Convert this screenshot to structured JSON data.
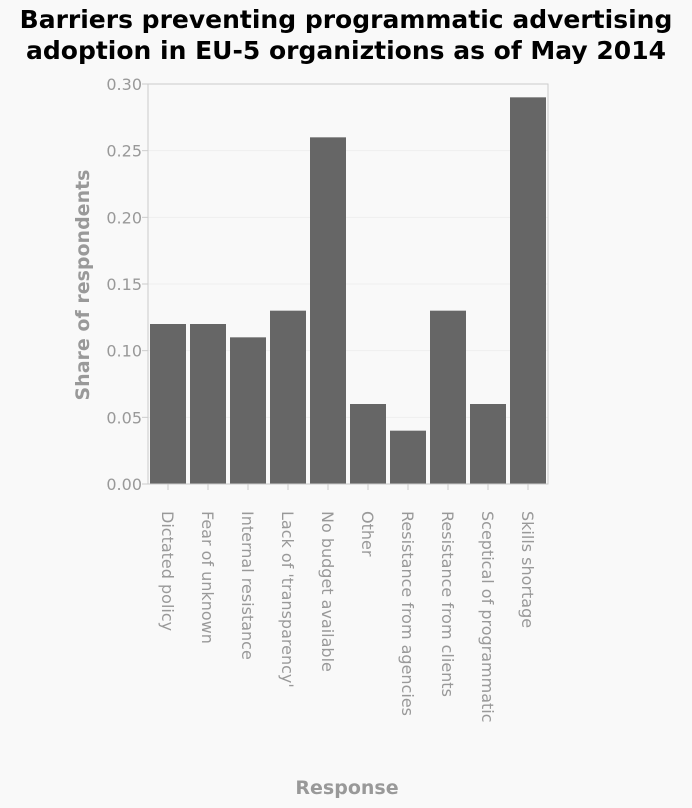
{
  "chart_data": {
    "type": "bar",
    "title_lines": [
      "Barriers preventing programmatic advertising",
      "adoption in EU-5 organiztions as of May 2014"
    ],
    "xlabel": "Response",
    "ylabel": "Share of respondents",
    "categories": [
      "Dictated policy",
      "Fear of unknown",
      "Internal resistance",
      "Lack of 'transparency'",
      "No budget available",
      "Other",
      "Resistance from agencies",
      "Resistance from clients",
      "Sceptical of programmatic",
      "Skills shortage"
    ],
    "values": [
      0.12,
      0.12,
      0.11,
      0.13,
      0.26,
      0.06,
      0.04,
      0.13,
      0.06,
      0.29
    ],
    "ylim": [
      0,
      0.3
    ],
    "yticks": [
      "0.00",
      "0.05",
      "0.10",
      "0.15",
      "0.20",
      "0.25",
      "0.30"
    ],
    "grid": true,
    "legend": "none"
  },
  "colors": {
    "bar": "#666666",
    "grid": "#eeeeee",
    "axis": "#cccccc",
    "text_muted": "#999999"
  }
}
